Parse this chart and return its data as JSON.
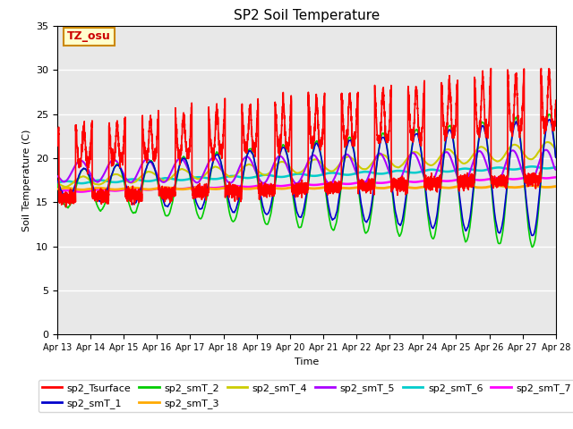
{
  "title": "SP2 Soil Temperature",
  "xlabel": "Time",
  "ylabel": "Soil Temperature (C)",
  "ylim": [
    0,
    35
  ],
  "xlim_days": [
    0,
    15
  ],
  "background_color": "#e8e8e8",
  "annotation_text": "TZ_osu",
  "annotation_bg": "#ffffcc",
  "annotation_border": "#cc8800",
  "annotation_text_color": "#cc0000",
  "series_colors": {
    "sp2_Tsurface": "#ff0000",
    "sp2_smT_1": "#0000cc",
    "sp2_smT_2": "#00cc00",
    "sp2_smT_3": "#ffaa00",
    "sp2_smT_4": "#cccc00",
    "sp2_smT_5": "#aa00ff",
    "sp2_smT_6": "#00cccc",
    "sp2_smT_7": "#ff00ff"
  },
  "tick_labels": [
    "Apr 13",
    "Apr 14",
    "Apr 15",
    "Apr 16",
    "Apr 17",
    "Apr 18",
    "Apr 19",
    "Apr 20",
    "Apr 21",
    "Apr 22",
    "Apr 23",
    "Apr 24",
    "Apr 25",
    "Apr 26",
    "Apr 27",
    "Apr 28"
  ],
  "tick_positions": [
    0,
    1,
    2,
    3,
    4,
    5,
    6,
    7,
    8,
    9,
    10,
    11,
    12,
    13,
    14,
    15
  ],
  "yticks": [
    0,
    5,
    10,
    15,
    20,
    25,
    30,
    35
  ]
}
